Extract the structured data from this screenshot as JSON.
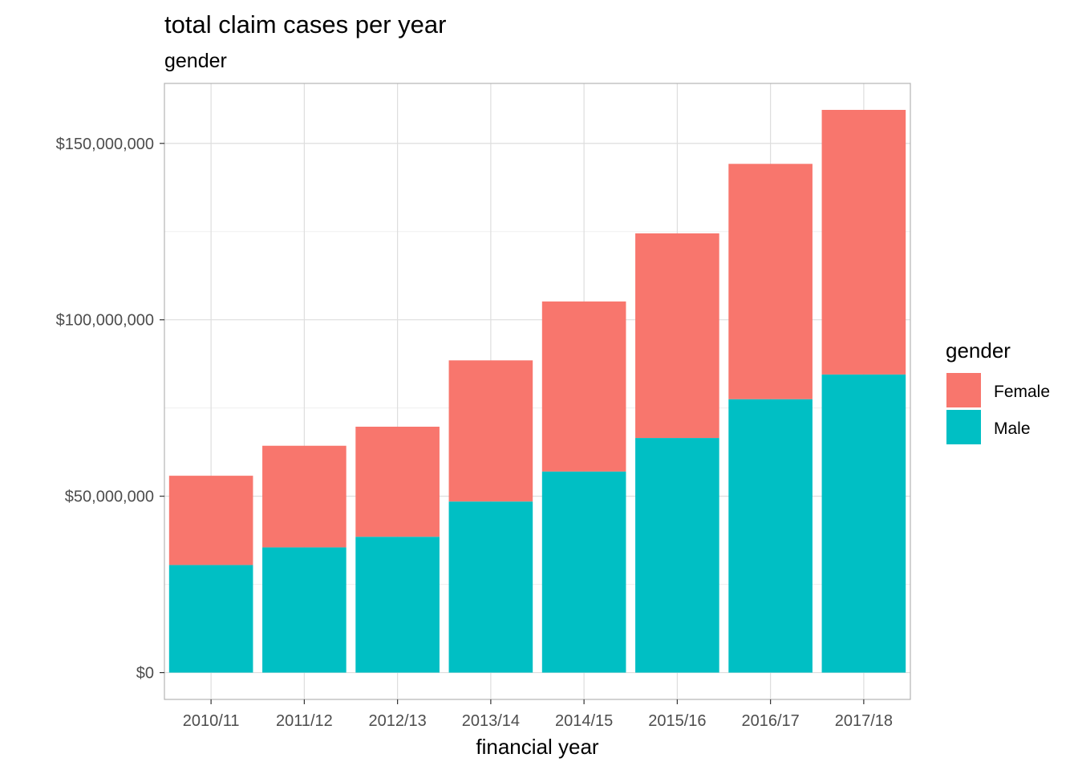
{
  "chart_data": {
    "type": "bar",
    "stacked": true,
    "title": "total claim cases per year",
    "subtitle": "gender",
    "xlabel": "financial year",
    "ylabel": "",
    "categories": [
      "2010/11",
      "2011/12",
      "2012/13",
      "2013/14",
      "2014/15",
      "2015/16",
      "2016/17",
      "2017/18"
    ],
    "series": [
      {
        "name": "Male",
        "color": "#00BFC4",
        "values": [
          30500000,
          35500000,
          38500000,
          48500000,
          57000000,
          66500000,
          77500000,
          84500000
        ]
      },
      {
        "name": "Female",
        "color": "#F8766D",
        "values": [
          25300000,
          28800000,
          31200000,
          40000000,
          48200000,
          58000000,
          66700000,
          75000000
        ]
      }
    ],
    "ylim": [
      -7600000,
      167000000
    ],
    "yticks": [
      0,
      50000000,
      100000000,
      150000000
    ],
    "ytick_labels": [
      "$0",
      "$50,000,000",
      "$100,000,000",
      "$150,000,000"
    ],
    "grid": true,
    "legend": {
      "title": "gender",
      "position": "right",
      "order": [
        "Female",
        "Male"
      ]
    },
    "theme": {
      "panel_border": "#b3b3b3",
      "grid_major": "#dedede",
      "grid_minor": "#efefef"
    }
  }
}
